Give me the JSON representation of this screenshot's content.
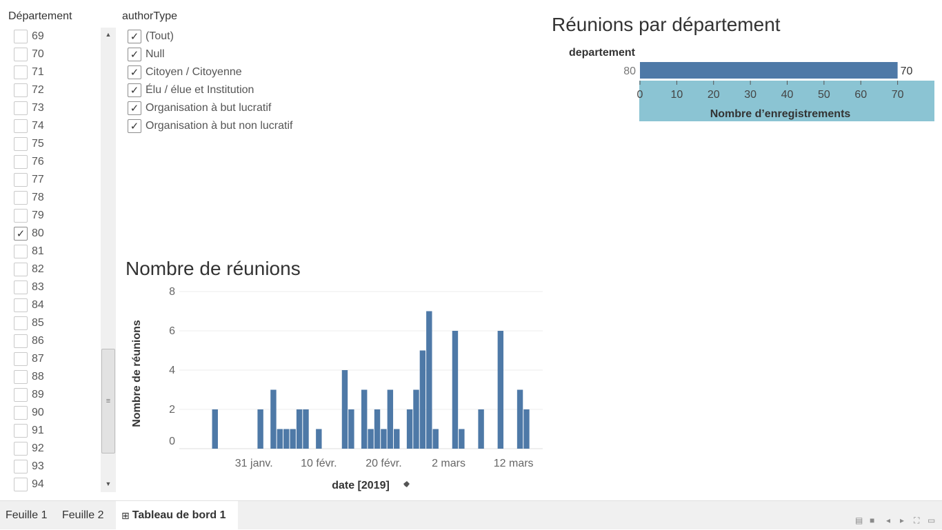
{
  "departement_filter": {
    "title": "Département",
    "items": [
      {
        "label": "69",
        "checked": false
      },
      {
        "label": "70",
        "checked": false
      },
      {
        "label": "71",
        "checked": false
      },
      {
        "label": "72",
        "checked": false
      },
      {
        "label": "73",
        "checked": false
      },
      {
        "label": "74",
        "checked": false
      },
      {
        "label": "75",
        "checked": false
      },
      {
        "label": "76",
        "checked": false
      },
      {
        "label": "77",
        "checked": false
      },
      {
        "label": "78",
        "checked": false
      },
      {
        "label": "79",
        "checked": false
      },
      {
        "label": "80",
        "checked": true
      },
      {
        "label": "81",
        "checked": false
      },
      {
        "label": "82",
        "checked": false
      },
      {
        "label": "83",
        "checked": false
      },
      {
        "label": "84",
        "checked": false
      },
      {
        "label": "85",
        "checked": false
      },
      {
        "label": "86",
        "checked": false
      },
      {
        "label": "87",
        "checked": false
      },
      {
        "label": "88",
        "checked": false
      },
      {
        "label": "89",
        "checked": false
      },
      {
        "label": "90",
        "checked": false
      },
      {
        "label": "91",
        "checked": false
      },
      {
        "label": "92",
        "checked": false
      },
      {
        "label": "93",
        "checked": false
      },
      {
        "label": "94",
        "checked": false
      }
    ]
  },
  "author_filter": {
    "title": "authorType",
    "items": [
      {
        "label": "(Tout)",
        "checked": true
      },
      {
        "label": "Null",
        "checked": true
      },
      {
        "label": "Citoyen / Citoyenne",
        "checked": true
      },
      {
        "label": "Élu / élue et Institution",
        "checked": true
      },
      {
        "label": "Organisation à but lucratif",
        "checked": true
      },
      {
        "label": "Organisation à but non lucratif",
        "checked": true
      }
    ]
  },
  "check_glyph": "✓",
  "scroll_grip": "≡",
  "bar_sheet": {
    "title": "Réunions par département"
  },
  "hist_sheet": {
    "title": "Nombre de réunions"
  },
  "chart_data": [
    {
      "type": "bar",
      "orientation": "horizontal",
      "title": "Réunions par département",
      "row_header": "departement",
      "categories": [
        "80"
      ],
      "values": [
        70
      ],
      "data_labels": [
        "70"
      ],
      "xlabel": "Nombre d’enregistrements",
      "xlim": [
        0,
        80
      ],
      "xticks": [
        0,
        10,
        20,
        30,
        40,
        50,
        60,
        70
      ],
      "bar_color": "#4e79a7",
      "axis_bg_color": "#8bc4d3"
    },
    {
      "type": "bar",
      "title": "Nombre de réunions",
      "xlabel": "date [2019]",
      "ylabel": "Nombre de réunions",
      "ylim": [
        0,
        8
      ],
      "yticks": [
        0,
        2,
        4,
        6,
        8
      ],
      "xlim": [
        "2019-01-20",
        "2019-03-17"
      ],
      "xticks": [
        {
          "date": "2019-01-31",
          "label": "31 janv."
        },
        {
          "date": "2019-02-10",
          "label": "10 févr."
        },
        {
          "date": "2019-02-20",
          "label": "20 févr."
        },
        {
          "date": "2019-03-02",
          "label": "2 mars"
        },
        {
          "date": "2019-03-12",
          "label": "12 mars"
        }
      ],
      "bar_color": "#4e79a7",
      "points": [
        {
          "date": "2019-01-25",
          "value": 2
        },
        {
          "date": "2019-02-01",
          "value": 2
        },
        {
          "date": "2019-02-03",
          "value": 3
        },
        {
          "date": "2019-02-04",
          "value": 1
        },
        {
          "date": "2019-02-05",
          "value": 1
        },
        {
          "date": "2019-02-06",
          "value": 1
        },
        {
          "date": "2019-02-07",
          "value": 2
        },
        {
          "date": "2019-02-08",
          "value": 2
        },
        {
          "date": "2019-02-10",
          "value": 1
        },
        {
          "date": "2019-02-14",
          "value": 4
        },
        {
          "date": "2019-02-15",
          "value": 2
        },
        {
          "date": "2019-02-17",
          "value": 3
        },
        {
          "date": "2019-02-18",
          "value": 1
        },
        {
          "date": "2019-02-19",
          "value": 2
        },
        {
          "date": "2019-02-20",
          "value": 1
        },
        {
          "date": "2019-02-21",
          "value": 3
        },
        {
          "date": "2019-02-22",
          "value": 1
        },
        {
          "date": "2019-02-24",
          "value": 2
        },
        {
          "date": "2019-02-25",
          "value": 3
        },
        {
          "date": "2019-02-26",
          "value": 5
        },
        {
          "date": "2019-02-27",
          "value": 7
        },
        {
          "date": "2019-02-28",
          "value": 1
        },
        {
          "date": "2019-03-03",
          "value": 6
        },
        {
          "date": "2019-03-04",
          "value": 1
        },
        {
          "date": "2019-03-07",
          "value": 2
        },
        {
          "date": "2019-03-10",
          "value": 6
        },
        {
          "date": "2019-03-13",
          "value": 3
        },
        {
          "date": "2019-03-14",
          "value": 2
        }
      ]
    }
  ],
  "tabs": [
    {
      "label": "Feuille 1",
      "active": false
    },
    {
      "label": "Feuille 2",
      "active": false
    },
    {
      "label": "Tableau de bord 1",
      "active": true,
      "icon": "⊞"
    }
  ],
  "bottom_icons": [
    "grid-view-icon",
    "single-view-icon",
    "prev-icon",
    "next-icon",
    "fullscreen-icon",
    "present-icon"
  ]
}
